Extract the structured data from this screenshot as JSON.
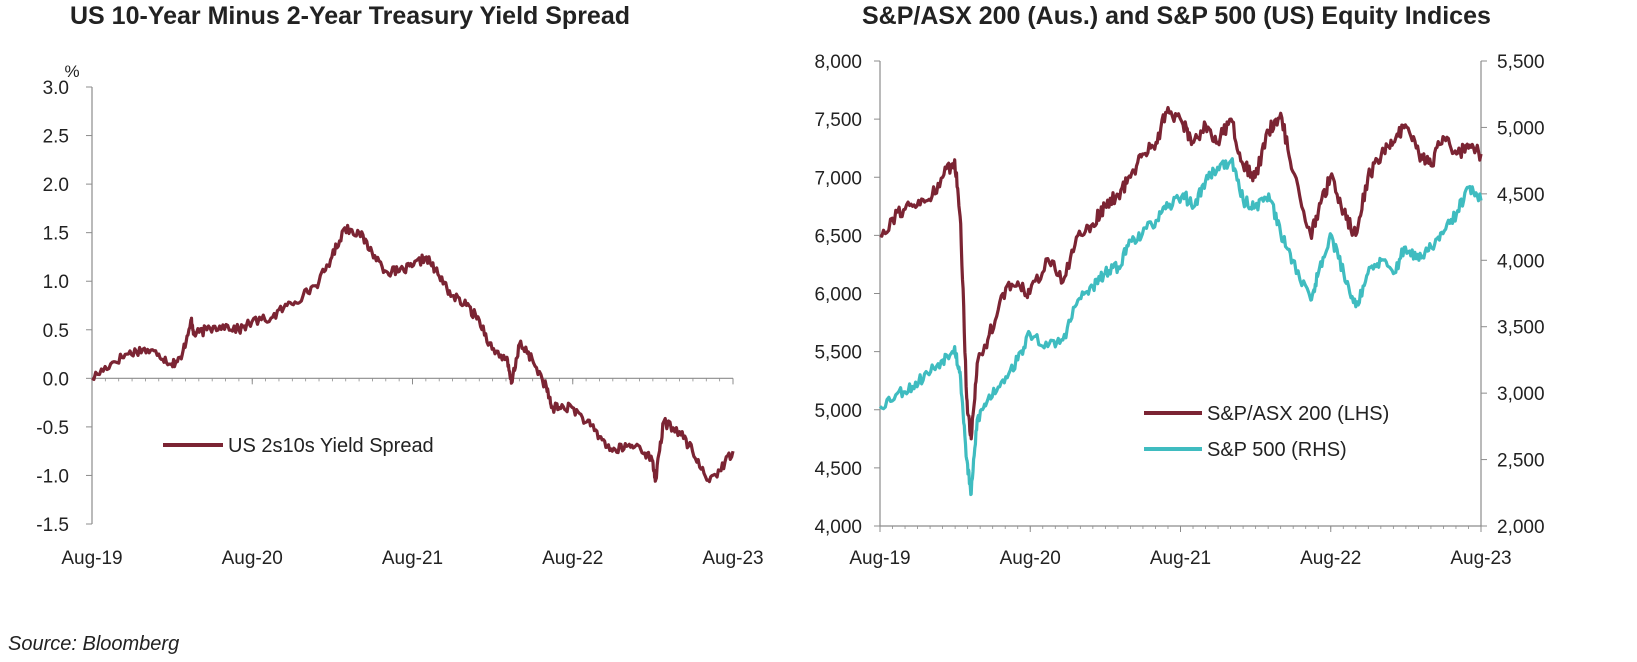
{
  "footer": {
    "source": "Source: Bloomberg"
  },
  "colors": {
    "maroon": "#7b2433",
    "teal": "#3fbcc0",
    "axis": "#8c8c8c"
  },
  "chart_data": [
    {
      "type": "line",
      "title": "US 10-Year Minus 2-Year Treasury Yield Spread",
      "ylabel": "%",
      "xlabel": "",
      "x_ticks": [
        "Aug-19",
        "Aug-20",
        "Aug-21",
        "Aug-22",
        "Aug-23"
      ],
      "y_ticks": [
        "3.0",
        "2.5",
        "2.0",
        "1.5",
        "1.0",
        "0.5",
        "0.0",
        "-0.5",
        "-1.0",
        "-1.5"
      ],
      "ylim": [
        -1.5,
        3.0
      ],
      "xlim": [
        2019.583,
        2023.583
      ],
      "grid": false,
      "legend_position": "center-left",
      "series": [
        {
          "name": "US 2s10s Yield Spread",
          "color": "#7b2433",
          "x": [
            2019.583,
            2019.7,
            2019.8,
            2019.9,
            2020.0,
            2020.08,
            2020.14,
            2020.2,
            2020.22,
            2020.3,
            2020.4,
            2020.5,
            2020.58,
            2020.7,
            2020.8,
            2020.9,
            2021.0,
            2021.08,
            2021.16,
            2021.25,
            2021.33,
            2021.42,
            2021.5,
            2021.58,
            2021.67,
            2021.75,
            2021.83,
            2021.92,
            2022.0,
            2022.08,
            2022.17,
            2022.2,
            2022.25,
            2022.33,
            2022.42,
            2022.45,
            2022.5,
            2022.58,
            2022.67,
            2022.75,
            2022.83,
            2022.92,
            2023.0,
            2023.08,
            2023.1,
            2023.15,
            2023.25,
            2023.33,
            2023.42,
            2023.5,
            2023.583
          ],
          "y": [
            0.0,
            0.15,
            0.25,
            0.3,
            0.25,
            0.15,
            0.2,
            0.6,
            0.45,
            0.5,
            0.55,
            0.5,
            0.58,
            0.62,
            0.75,
            0.85,
            1.0,
            1.25,
            1.55,
            1.5,
            1.3,
            1.1,
            1.1,
            1.15,
            1.25,
            1.05,
            0.85,
            0.75,
            0.6,
            0.3,
            0.2,
            -0.05,
            0.35,
            0.2,
            -0.1,
            -0.3,
            -0.3,
            -0.3,
            -0.45,
            -0.6,
            -0.75,
            -0.7,
            -0.7,
            -0.85,
            -1.05,
            -0.45,
            -0.55,
            -0.75,
            -1.05,
            -0.95,
            -0.75
          ]
        }
      ]
    },
    {
      "type": "line",
      "title": "S&P/ASX 200 (Aus.) and S&P 500 (US) Equity Indices",
      "xlabel": "",
      "x_ticks": [
        "Aug-19",
        "Aug-20",
        "Aug-21",
        "Aug-22",
        "Aug-23"
      ],
      "y_ticks_left": [
        "8,000",
        "7,500",
        "7,000",
        "6,500",
        "6,000",
        "5,500",
        "5,000",
        "4,500",
        "4,000"
      ],
      "y_ticks_right": [
        "5,500",
        "5,000",
        "4,500",
        "4,000",
        "3,500",
        "3,000",
        "2,500",
        "2,000"
      ],
      "ylim_left": [
        4000,
        8000
      ],
      "ylim_right": [
        2000,
        5500
      ],
      "xlim": [
        2019.583,
        2023.583
      ],
      "grid": false,
      "legend_position": "bottom-right",
      "series": [
        {
          "name": "S&P/ASX 200 (LHS)",
          "axis": "left",
          "color": "#7b2433",
          "x": [
            2019.583,
            2019.7,
            2019.8,
            2019.9,
            2020.0,
            2020.08,
            2020.12,
            2020.16,
            2020.19,
            2020.23,
            2020.3,
            2020.4,
            2020.5,
            2020.58,
            2020.7,
            2020.8,
            2020.9,
            2021.0,
            2021.08,
            2021.17,
            2021.25,
            2021.33,
            2021.42,
            2021.5,
            2021.6,
            2021.67,
            2021.75,
            2021.83,
            2021.92,
            2022.0,
            2022.08,
            2022.17,
            2022.25,
            2022.33,
            2022.45,
            2022.5,
            2022.58,
            2022.67,
            2022.75,
            2022.83,
            2022.92,
            2023.0,
            2023.08,
            2023.17,
            2023.25,
            2023.33,
            2023.42,
            2023.5,
            2023.583
          ],
          "y": [
            6500,
            6700,
            6750,
            6800,
            7000,
            7150,
            6600,
            5100,
            4750,
            5400,
            5600,
            6000,
            6100,
            6000,
            6300,
            6100,
            6500,
            6600,
            6750,
            6850,
            7000,
            7200,
            7300,
            7600,
            7450,
            7300,
            7450,
            7300,
            7500,
            7100,
            7000,
            7400,
            7550,
            7050,
            6500,
            6700,
            7000,
            6700,
            6500,
            7000,
            7200,
            7300,
            7450,
            7200,
            7100,
            7350,
            7200,
            7250,
            7200
          ]
        },
        {
          "name": "S&P 500 (RHS)",
          "axis": "right",
          "color": "#3fbcc0",
          "x": [
            2019.583,
            2019.7,
            2019.8,
            2019.9,
            2020.0,
            2020.08,
            2020.12,
            2020.16,
            2020.19,
            2020.23,
            2020.3,
            2020.4,
            2020.5,
            2020.58,
            2020.7,
            2020.8,
            2020.9,
            2021.0,
            2021.08,
            2021.17,
            2021.25,
            2021.33,
            2021.42,
            2021.5,
            2021.6,
            2021.67,
            2021.75,
            2021.83,
            2021.92,
            2022.0,
            2022.08,
            2022.17,
            2022.25,
            2022.33,
            2022.45,
            2022.5,
            2022.58,
            2022.67,
            2022.75,
            2022.83,
            2022.92,
            2023.0,
            2023.08,
            2023.17,
            2023.25,
            2023.33,
            2023.42,
            2023.5,
            2023.583
          ],
          "y": [
            2900,
            3000,
            3050,
            3150,
            3250,
            3350,
            3100,
            2500,
            2240,
            2800,
            2950,
            3100,
            3250,
            3450,
            3350,
            3400,
            3700,
            3800,
            3900,
            3950,
            4150,
            4200,
            4300,
            4400,
            4500,
            4400,
            4600,
            4700,
            4750,
            4450,
            4400,
            4500,
            4200,
            4000,
            3700,
            3900,
            4200,
            3900,
            3650,
            3900,
            4000,
            3900,
            4100,
            4000,
            4100,
            4200,
            4350,
            4550,
            4450
          ]
        }
      ]
    }
  ]
}
